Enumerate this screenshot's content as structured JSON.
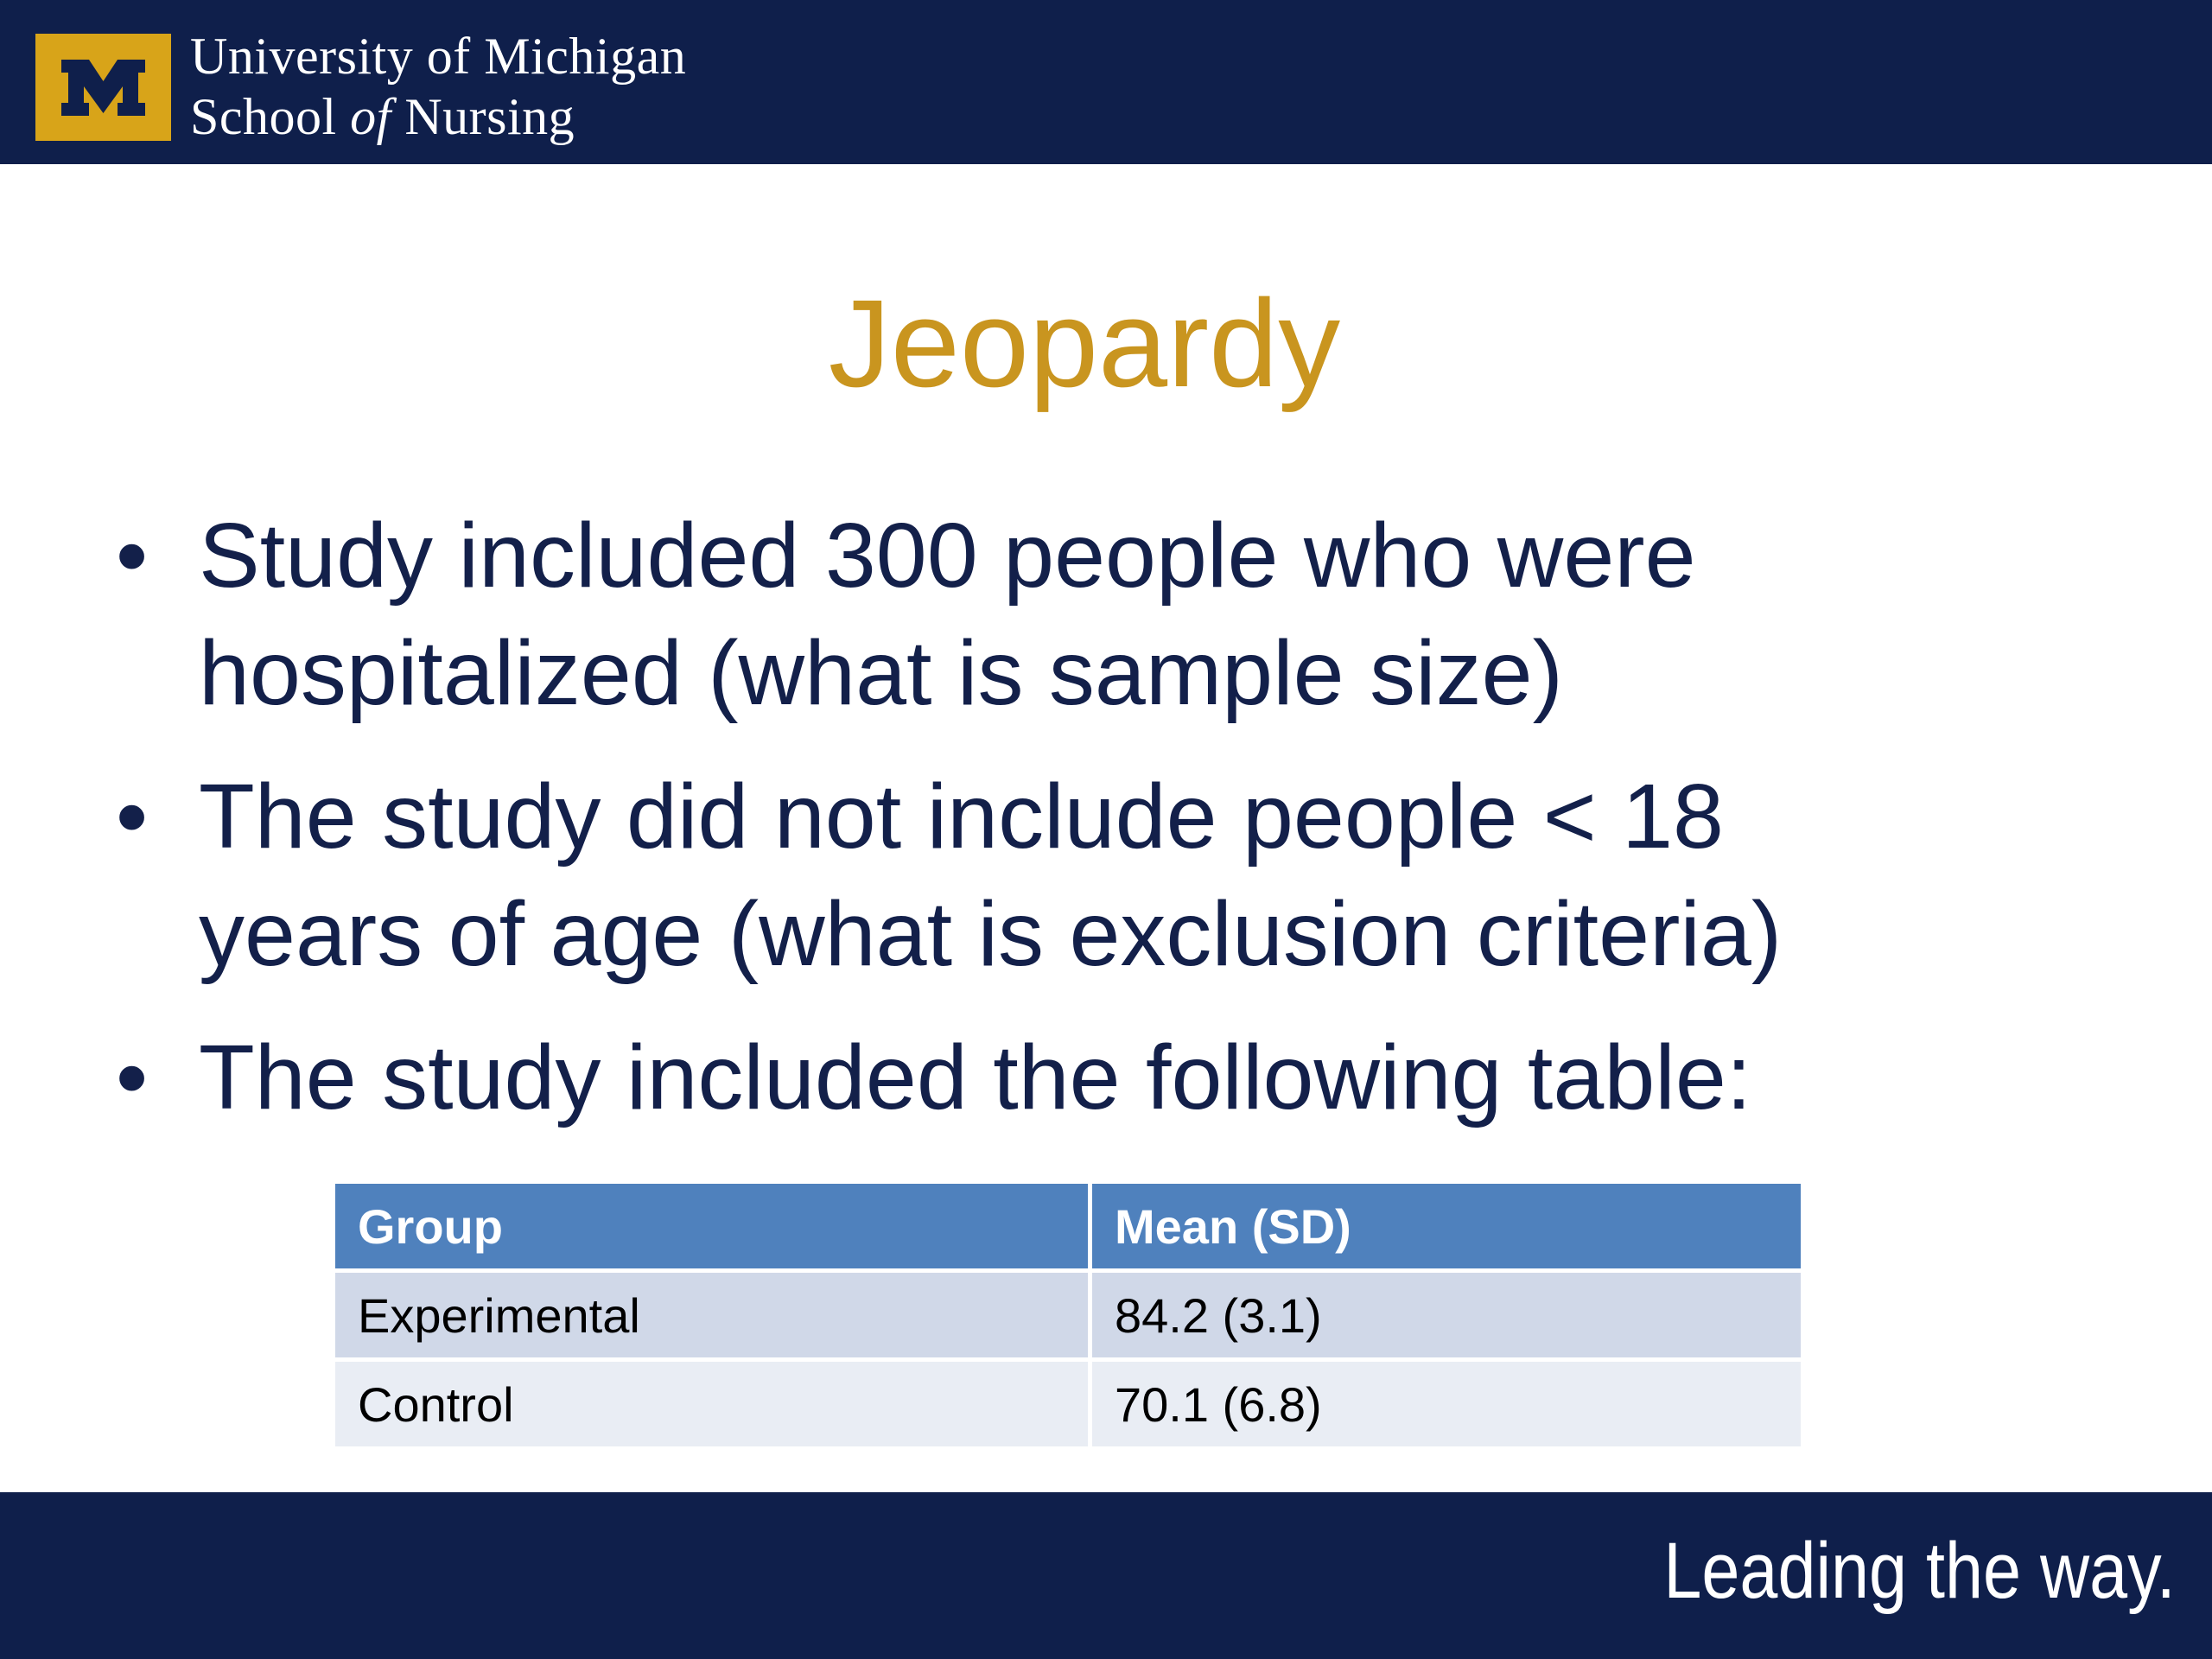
{
  "header": {
    "logo_letter": "M",
    "brand_line1": "University of Michigan",
    "brand_line2_a": "School ",
    "brand_line2_b": "of",
    "brand_line2_c": " Nursing",
    "background_color": "#0f1f4b",
    "logo_color": "#d8a419"
  },
  "slide": {
    "title": "Jeopardy",
    "title_color": "#c9951f",
    "text_color": "#13204a",
    "bullet_symbol": "•",
    "bullets": [
      {
        "line1": "Study included 300 people who were",
        "line2": "hospitalized (what is sample size)"
      },
      {
        "line1": "The study did not include people < 18",
        "line2": "years of age (what is exclusion criteria)"
      },
      {
        "line1": "The study included the following table:"
      }
    ]
  },
  "table": {
    "header_color": "#4f81bd",
    "headers": [
      "Group",
      "Mean (SD)"
    ],
    "rows": [
      [
        "Experimental",
        "84.2 (3.1)"
      ],
      [
        "Control",
        "70.1 (6.8)"
      ]
    ]
  },
  "footer": {
    "tagline": "Leading the way."
  }
}
